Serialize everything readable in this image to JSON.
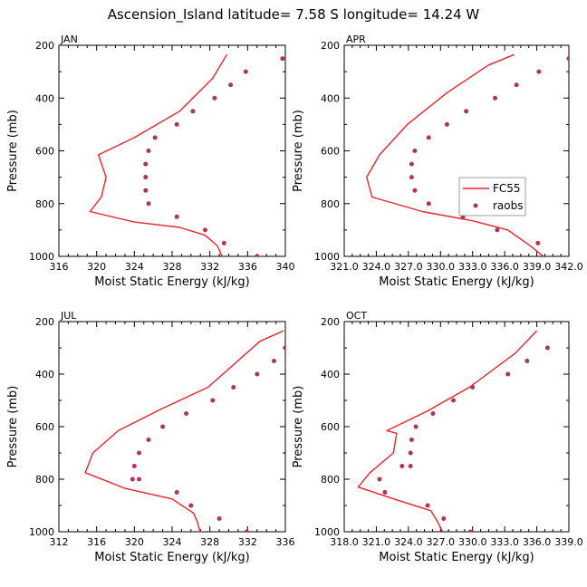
{
  "title": "Ascension_Island  latitude= 7.58 S longitude= 14.24 W",
  "colors": {
    "model": "#e8242b",
    "obs": "#b0335a",
    "axis": "#000000"
  },
  "legend": {
    "model_label": "FC55",
    "obs_label": "raobs"
  },
  "chart_data": [
    {
      "type": "line",
      "month": "JAN",
      "xlabel": "Moist Static Energy (kJ/kg)",
      "ylabel": "Pressure (mb)",
      "xlim": [
        316,
        340
      ],
      "ylim": [
        1000,
        200
      ],
      "xticks": [
        316,
        320,
        324,
        328,
        332,
        336,
        340
      ],
      "xtick_labels": [
        "316",
        "320",
        "324",
        "328",
        "332",
        "336",
        "340"
      ],
      "yticks": [
        200,
        400,
        600,
        800,
        1000
      ],
      "ytick_labels": [
        "200",
        "400",
        "600",
        "800",
        "1000"
      ],
      "series": [
        {
          "name": "FC55",
          "kind": "line",
          "x": [
            333.8,
            332.3,
            328.8,
            324.0,
            320.2,
            321.0,
            320.5,
            319.3,
            324.0,
            328.8,
            331.5,
            332.8,
            333.3
          ],
          "y": [
            235,
            325,
            450,
            550,
            615,
            700,
            775,
            830,
            870,
            890,
            920,
            960,
            1000
          ]
        },
        {
          "name": "raobs",
          "kind": "scatter",
          "x": [
            339.7,
            335.8,
            334.2,
            332.5,
            330.2,
            328.5,
            326.2,
            325.5,
            325.2,
            325.2,
            325.2,
            325.5,
            328.5,
            331.5,
            333.5,
            337.0
          ],
          "y": [
            250,
            300,
            350,
            400,
            450,
            500,
            550,
            600,
            650,
            700,
            750,
            800,
            850,
            900,
            950,
            1000
          ]
        }
      ]
    },
    {
      "type": "line",
      "month": "APR",
      "xlabel": "Moist Static Energy (kJ/kg)",
      "ylabel": "Pressure (mb)",
      "xlim": [
        321.0,
        342.0
      ],
      "ylim": [
        1000,
        200
      ],
      "xticks": [
        321.0,
        324.0,
        327.0,
        330.0,
        333.0,
        336.0,
        339.0,
        342.0
      ],
      "xtick_labels": [
        "321.0",
        "324.0",
        "327.0",
        "330.0",
        "333.0",
        "336.0",
        "339.0",
        "342.0"
      ],
      "yticks": [
        200,
        400,
        600,
        800,
        1000
      ],
      "ytick_labels": [
        "200",
        "400",
        "600",
        "800",
        "1000"
      ],
      "series": [
        {
          "name": "FC55",
          "kind": "line",
          "x": [
            336.9,
            334.5,
            330.6,
            326.9,
            324.3,
            323.1,
            323.6,
            328.3,
            333.0,
            336.3,
            338.4,
            339.6
          ],
          "y": [
            235,
            275,
            380,
            500,
            615,
            700,
            775,
            830,
            865,
            900,
            960,
            1000
          ]
        },
        {
          "name": "raobs",
          "kind": "scatter",
          "x": [
            342.0,
            339.2,
            337.1,
            335.1,
            332.4,
            330.6,
            328.9,
            327.6,
            327.3,
            327.3,
            327.6,
            328.9,
            332.1,
            335.3,
            339.1,
            342.4
          ],
          "y": [
            250,
            300,
            350,
            400,
            450,
            500,
            550,
            600,
            650,
            700,
            750,
            800,
            850,
            900,
            950,
            1000
          ]
        }
      ]
    },
    {
      "type": "line",
      "month": "JUL",
      "xlabel": "Moist Static Energy (kJ/kg)",
      "ylabel": "Pressure (mb)",
      "xlim": [
        312,
        336
      ],
      "ylim": [
        1000,
        200
      ],
      "xticks": [
        312,
        316,
        320,
        324,
        328,
        332,
        336
      ],
      "xtick_labels": [
        "312",
        "316",
        "320",
        "324",
        "328",
        "332",
        "336"
      ],
      "yticks": [
        200,
        400,
        600,
        800,
        1000
      ],
      "ytick_labels": [
        "200",
        "400",
        "600",
        "800",
        "1000"
      ],
      "series": [
        {
          "name": "FC55",
          "kind": "line",
          "x": [
            335.8,
            333.3,
            327.8,
            323.0,
            318.3,
            315.6,
            314.8,
            319.0,
            324.0,
            326.3,
            326.7,
            327.0
          ],
          "y": [
            235,
            275,
            450,
            530,
            615,
            700,
            775,
            835,
            875,
            930,
            965,
            1005
          ]
        },
        {
          "name": "raobs",
          "kind": "scatter",
          "x": [
            336.0,
            334.8,
            333.0,
            330.5,
            328.3,
            325.5,
            323.0,
            321.5,
            320.5,
            320.0,
            319.8,
            320.5,
            324.5,
            326.0,
            329.0,
            331.9
          ],
          "y": [
            300,
            350,
            400,
            450,
            500,
            550,
            600,
            650,
            700,
            750,
            800,
            800,
            850,
            900,
            950,
            1000
          ]
        }
      ]
    },
    {
      "type": "line",
      "month": "OCT",
      "xlabel": "Moist Static Energy (kJ/kg)",
      "ylabel": "Pressure (mb)",
      "xlim": [
        318.0,
        339.0
      ],
      "ylim": [
        1000,
        200
      ],
      "xticks": [
        318.0,
        321.0,
        324.0,
        327.0,
        330.0,
        333.0,
        336.0,
        339.0
      ],
      "xtick_labels": [
        "318.0",
        "321.0",
        "324.0",
        "327.0",
        "330.0",
        "333.0",
        "336.0",
        "339.0"
      ],
      "yticks": [
        200,
        400,
        600,
        800,
        1000
      ],
      "ytick_labels": [
        "200",
        "400",
        "600",
        "800",
        "1000"
      ],
      "series": [
        {
          "name": "FC55",
          "kind": "line",
          "x": [
            336.0,
            334.0,
            329.7,
            325.8,
            322.0,
            322.9,
            322.6,
            320.4,
            319.3,
            323.0,
            326.1,
            326.7,
            327.2
          ],
          "y": [
            235,
            320,
            450,
            540,
            615,
            625,
            700,
            775,
            830,
            880,
            920,
            960,
            1000
          ]
        },
        {
          "name": "raobs",
          "kind": "scatter",
          "x": [
            337.0,
            335.1,
            333.3,
            330.0,
            328.2,
            326.3,
            324.7,
            324.3,
            324.2,
            324.2,
            323.4,
            321.3,
            321.8,
            325.8,
            327.3,
            329.8
          ],
          "y": [
            300,
            350,
            400,
            450,
            500,
            550,
            600,
            650,
            700,
            750,
            750,
            800,
            850,
            900,
            950,
            1000
          ]
        }
      ]
    }
  ]
}
